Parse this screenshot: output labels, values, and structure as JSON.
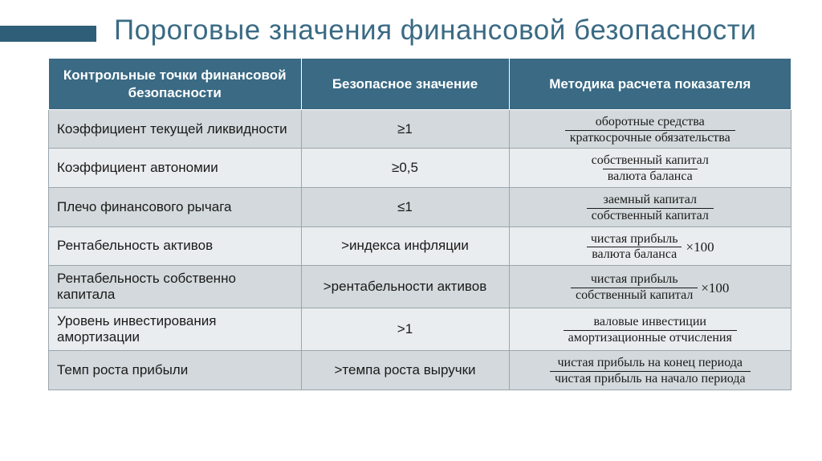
{
  "title": "Пороговые значения финансовой безопасности",
  "colors": {
    "header_bg": "#3a6a84",
    "header_text": "#ffffff",
    "row_odd": "#d3d9dc",
    "row_even": "#eaedef",
    "border": "#9aa6ad",
    "title_color": "#3a6a84"
  },
  "columns": [
    "Контрольные точки финансовой безопасности",
    "Безопасное значение",
    "Методика расчета показателя"
  ],
  "rows": [
    {
      "name": "Коэффициент текущей ликвидности",
      "safe": "≥1",
      "formula": {
        "type": "fraction",
        "num": "оборотные средства",
        "den": "краткосрочные обязательства"
      }
    },
    {
      "name": "Коэффициент автономии",
      "safe": "≥0,5",
      "formula": {
        "type": "fraction",
        "num": "собственный капитал",
        "den": "валюта баланса"
      }
    },
    {
      "name": "Плечо финансового рычага",
      "safe": "≤1",
      "formula": {
        "type": "fraction",
        "num": "заемный капитал",
        "den": "собственный капитал"
      }
    },
    {
      "name": "Рентабельность активов",
      "safe": ">индекса инфляции",
      "formula": {
        "type": "fraction_x100",
        "num": "чистая прибыль",
        "den": "валюта баланса"
      }
    },
    {
      "name": "Рентабельность собственно капитала",
      "safe": ">рентабельности активов",
      "formula": {
        "type": "fraction_x100",
        "num": "чистая прибыль",
        "den": "собственный капитал"
      }
    },
    {
      "name": "Уровень инвестирования амортизации",
      "safe": ">1",
      "formula": {
        "type": "fraction",
        "num": "валовые инвестиции",
        "den": "амортизационные отчисления"
      }
    },
    {
      "name": "Темп роста прибыли",
      "safe": ">темпа роста выручки",
      "formula": {
        "type": "fraction",
        "num": "чистая прибыль на конец периода",
        "den": "чистая прибыль на начало периода"
      }
    }
  ],
  "times100_label": "×100"
}
